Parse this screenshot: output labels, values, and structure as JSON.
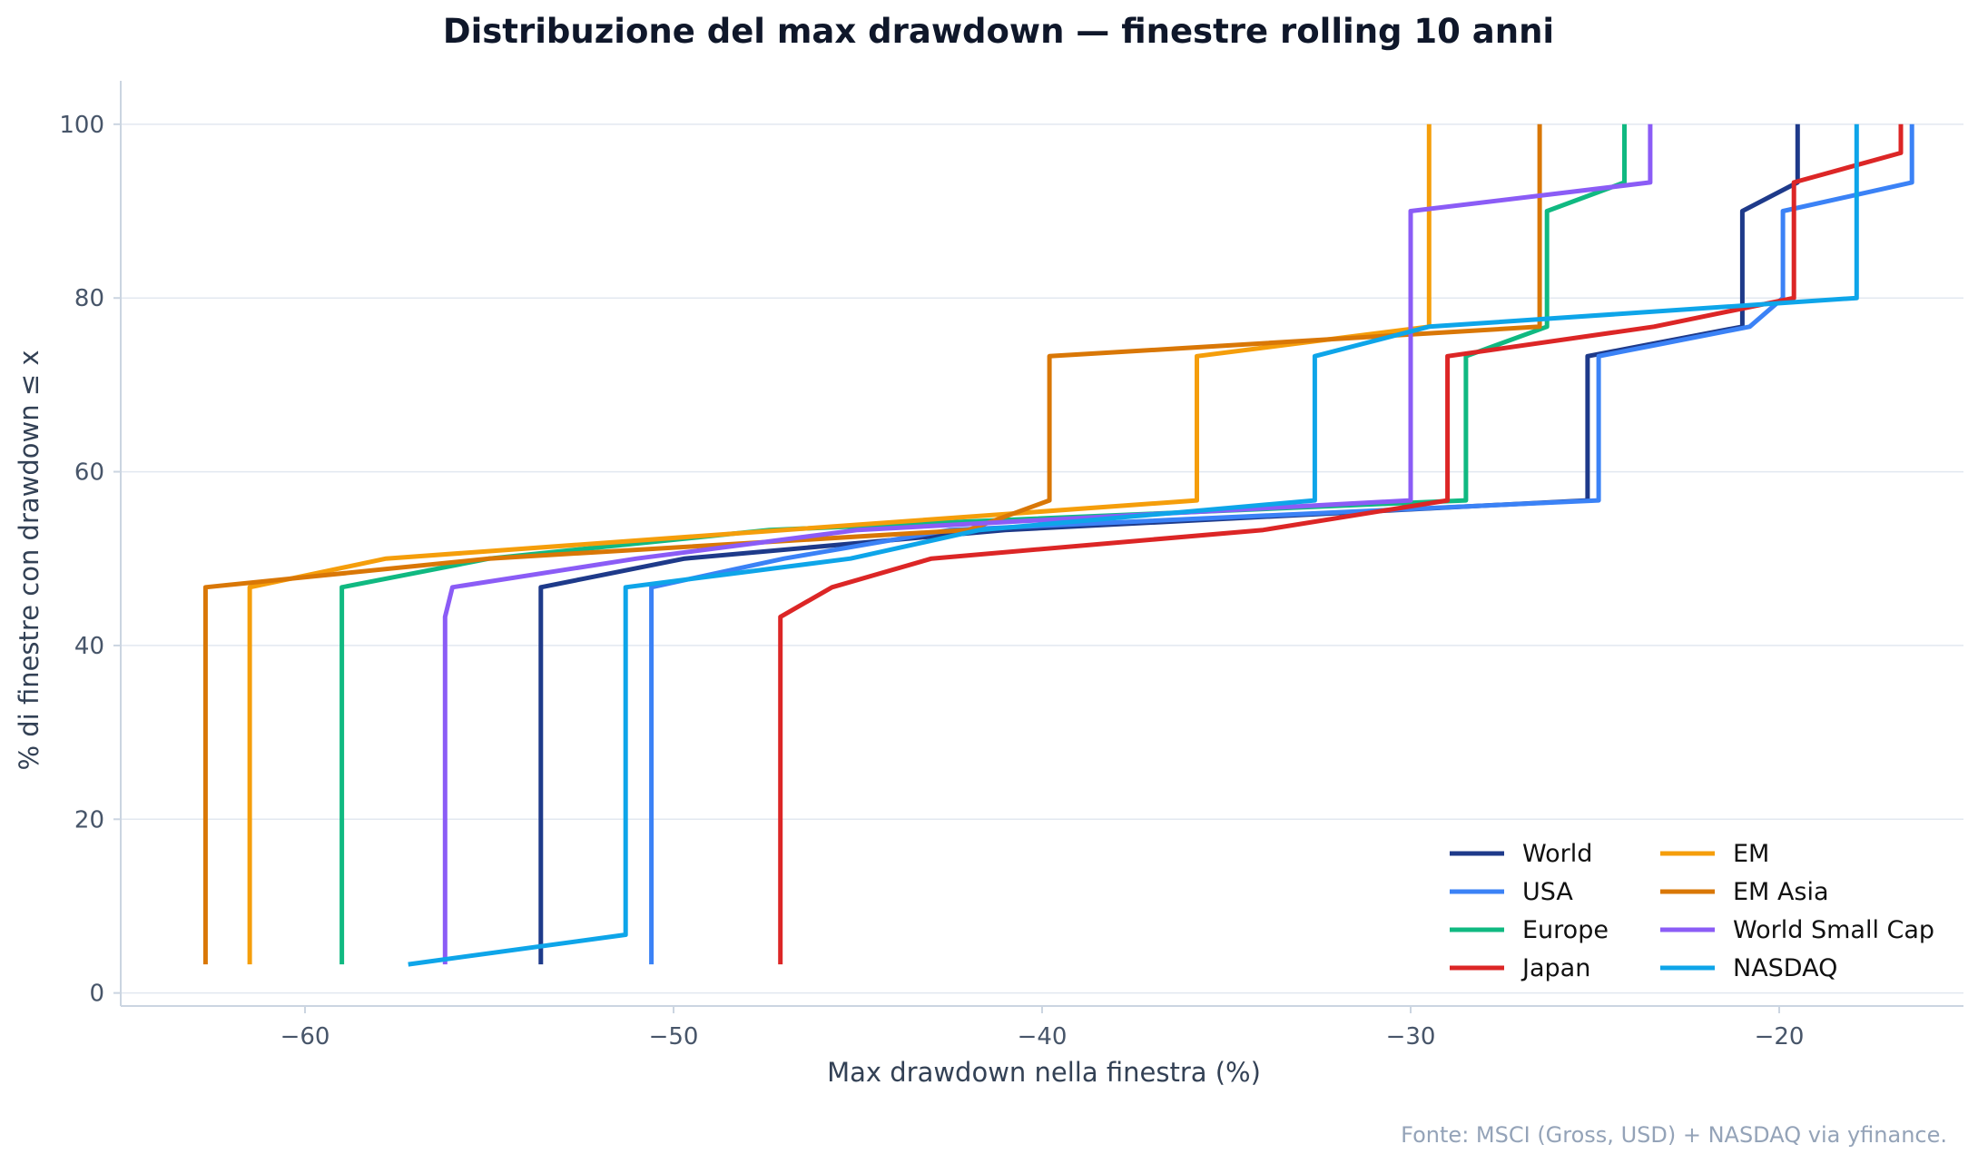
{
  "chart_data": {
    "type": "line",
    "title": "Distribuzione del max drawdown — finestre rolling 10 anni",
    "xlabel": "Max drawdown nella finestra (%)",
    "ylabel": "% di finestre con drawdown ≤ x",
    "xlim": [
      -65,
      -15
    ],
    "ylim": [
      -1.5,
      105
    ],
    "xticks": [
      -60,
      -50,
      -40,
      -30,
      -20
    ],
    "xtick_labels": [
      "−60",
      "−50",
      "−40",
      "−30",
      "−20"
    ],
    "yticks": [
      0,
      20,
      40,
      60,
      80,
      100
    ],
    "ytick_labels": [
      "0",
      "20",
      "40",
      "60",
      "80",
      "100"
    ],
    "grid": "horizontal",
    "legend_position": "lower-right",
    "legend_columns": 2,
    "source": "Fonte: MSCI (Gross, USD) + NASDAQ via yfinance.",
    "series": [
      {
        "name": "World",
        "color": "#1e3a8a",
        "points": [
          [
            -53.6,
            3.3
          ],
          [
            -53.6,
            46.7
          ],
          [
            -49.7,
            50.0
          ],
          [
            -41.0,
            53.3
          ],
          [
            -25.2,
            56.7
          ],
          [
            -25.2,
            73.3
          ],
          [
            -21.0,
            76.7
          ],
          [
            -21.0,
            90.0
          ],
          [
            -19.5,
            93.3
          ],
          [
            -19.5,
            100.0
          ]
        ]
      },
      {
        "name": "USA",
        "color": "#3b82f6",
        "points": [
          [
            -50.6,
            3.3
          ],
          [
            -50.6,
            46.7
          ],
          [
            -47.0,
            50.0
          ],
          [
            -42.5,
            53.3
          ],
          [
            -24.9,
            56.7
          ],
          [
            -24.9,
            73.3
          ],
          [
            -20.8,
            76.7
          ],
          [
            -19.9,
            80.0
          ],
          [
            -19.9,
            90.0
          ],
          [
            -16.4,
            93.3
          ],
          [
            -16.4,
            100.0
          ]
        ]
      },
      {
        "name": "Europe",
        "color": "#10b981",
        "points": [
          [
            -59.0,
            3.3
          ],
          [
            -59.0,
            46.7
          ],
          [
            -55.0,
            50.0
          ],
          [
            -47.4,
            53.3
          ],
          [
            -28.5,
            56.7
          ],
          [
            -28.5,
            73.3
          ],
          [
            -26.3,
            76.7
          ],
          [
            -26.3,
            90.0
          ],
          [
            -24.2,
            93.3
          ],
          [
            -24.2,
            100.0
          ]
        ]
      },
      {
        "name": "Japan",
        "color": "#dc2626",
        "points": [
          [
            -47.1,
            3.3
          ],
          [
            -47.1,
            43.3
          ],
          [
            -45.7,
            46.7
          ],
          [
            -43.0,
            50.0
          ],
          [
            -34.0,
            53.3
          ],
          [
            -29.0,
            56.7
          ],
          [
            -29.0,
            73.3
          ],
          [
            -23.4,
            76.7
          ],
          [
            -19.6,
            80.0
          ],
          [
            -19.6,
            93.3
          ],
          [
            -16.7,
            96.7
          ],
          [
            -16.7,
            100.0
          ]
        ]
      },
      {
        "name": "EM",
        "color": "#f59e0b",
        "points": [
          [
            -61.5,
            3.3
          ],
          [
            -61.5,
            46.7
          ],
          [
            -57.8,
            50.0
          ],
          [
            -47.0,
            53.3
          ],
          [
            -35.8,
            56.7
          ],
          [
            -35.8,
            73.3
          ],
          [
            -29.5,
            76.7
          ],
          [
            -29.5,
            100.0
          ]
        ]
      },
      {
        "name": "EM Asia",
        "color": "#d97706",
        "points": [
          [
            -62.7,
            3.3
          ],
          [
            -62.7,
            46.7
          ],
          [
            -55.0,
            50.0
          ],
          [
            -42.0,
            53.3
          ],
          [
            -39.8,
            56.7
          ],
          [
            -39.8,
            73.3
          ],
          [
            -26.5,
            76.7
          ],
          [
            -26.5,
            100.0
          ]
        ]
      },
      {
        "name": "World Small Cap",
        "color": "#8b5cf6",
        "points": [
          [
            -56.2,
            3.3
          ],
          [
            -56.2,
            43.3
          ],
          [
            -56.0,
            46.7
          ],
          [
            -51.0,
            50.0
          ],
          [
            -45.0,
            53.3
          ],
          [
            -30.0,
            56.7
          ],
          [
            -30.0,
            90.0
          ],
          [
            -23.5,
            93.3
          ],
          [
            -23.5,
            100.0
          ]
        ]
      },
      {
        "name": "NASDAQ",
        "color": "#0ea5e9",
        "points": [
          [
            -57.2,
            3.3
          ],
          [
            -51.3,
            6.7
          ],
          [
            -51.3,
            46.7
          ],
          [
            -45.2,
            50.0
          ],
          [
            -41.7,
            53.3
          ],
          [
            -32.6,
            56.7
          ],
          [
            -32.6,
            73.3
          ],
          [
            -29.5,
            76.7
          ],
          [
            -17.9,
            80.0
          ],
          [
            -17.9,
            100.0
          ]
        ]
      }
    ]
  }
}
